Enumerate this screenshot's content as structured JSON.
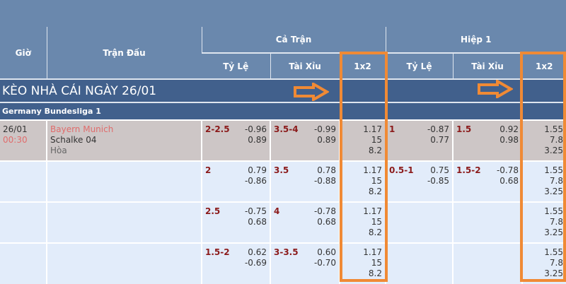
{
  "header": {
    "time": "Giờ",
    "match": "Trận Đấu",
    "full_match": "Cả Trận",
    "half1": "Hiệp 1",
    "cols": [
      "Tỷ Lệ",
      "Tài Xỉu",
      "1x2",
      "Tỷ Lệ",
      "Tài Xỉu",
      "1x2"
    ]
  },
  "title": "KÈO NHÀ CÁI NGÀY 26/01",
  "league": "Germany Bundesliga 1",
  "match": {
    "date": "26/01",
    "time": "00:30",
    "home": "Bayern Munich",
    "away": "Schalke 04",
    "draw": "Hòa"
  },
  "rows": [
    {
      "hdp": "2-2.5",
      "hdp_o": [
        "-0.96",
        "0.89"
      ],
      "ou": "3.5-4",
      "ou_o": [
        "-0.99",
        "0.89"
      ],
      "x12": [
        "1.17",
        "15",
        "8.2"
      ],
      "h_hdp": "1",
      "h_hdp_o": [
        "-0.87",
        "0.77"
      ],
      "h_ou": "1.5",
      "h_ou_o": [
        "0.92",
        "0.98"
      ],
      "h_x12": [
        "1.55",
        "7.8",
        "3.25"
      ]
    },
    {
      "hdp": "2",
      "hdp_o": [
        "0.79",
        "-0.86"
      ],
      "ou": "3.5",
      "ou_o": [
        "0.78",
        "-0.88"
      ],
      "x12": [
        "1.17",
        "15",
        "8.2"
      ],
      "h_hdp": "0.5-1",
      "h_hdp_o": [
        "0.75",
        "-0.85"
      ],
      "h_ou": "1.5-2",
      "h_ou_o": [
        "-0.78",
        "0.68"
      ],
      "h_x12": [
        "1.55",
        "7.8",
        "3.25"
      ]
    },
    {
      "hdp": "2.5",
      "hdp_o": [
        "-0.75",
        "0.68"
      ],
      "ou": "4",
      "ou_o": [
        "-0.78",
        "0.68"
      ],
      "x12": [
        "1.17",
        "15",
        "8.2"
      ],
      "h_hdp": "",
      "h_hdp_o": [
        "",
        ""
      ],
      "h_ou": "",
      "h_ou_o": [
        "",
        ""
      ],
      "h_x12": [
        "1.55",
        "7.8",
        "3.25"
      ]
    },
    {
      "hdp": "1.5-2",
      "hdp_o": [
        "0.62",
        "-0.69"
      ],
      "ou": "3-3.5",
      "ou_o": [
        "0.60",
        "-0.70"
      ],
      "x12": [
        "1.17",
        "15",
        "8.2"
      ],
      "h_hdp": "",
      "h_hdp_o": [
        "",
        ""
      ],
      "h_ou": "",
      "h_ou_o": [
        "",
        ""
      ],
      "h_x12": [
        "1.55",
        "7.8",
        "3.25"
      ]
    }
  ],
  "colors": {
    "header": "#6a88ad",
    "band": "#41608c",
    "highlight": "#f08a35"
  }
}
